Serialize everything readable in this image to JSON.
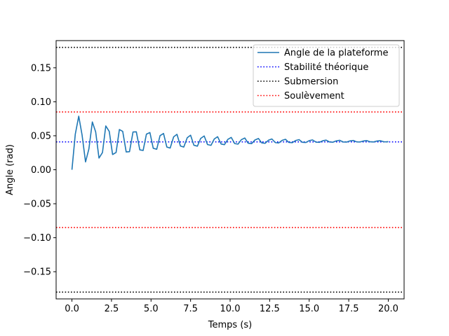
{
  "chart_data": {
    "type": "line",
    "title": "",
    "xlabel": "Temps (s)",
    "ylabel": "Angle (rad)",
    "xlim": [
      -1.0,
      21.0
    ],
    "ylim": [
      -0.19,
      0.19
    ],
    "xticks": [
      0.0,
      2.5,
      5.0,
      7.5,
      10.0,
      12.5,
      15.0,
      17.5,
      20.0
    ],
    "xtick_labels": [
      "0.0",
      "2.5",
      "5.0",
      "7.5",
      "10.0",
      "12.5",
      "15.0",
      "17.5",
      "20.0"
    ],
    "yticks": [
      -0.15,
      -0.1,
      -0.05,
      0.0,
      0.05,
      0.1,
      0.15
    ],
    "ytick_labels": [
      "−0.15",
      "−0.10",
      "−0.05",
      "0.00",
      "0.05",
      "0.10",
      "0.15"
    ],
    "grid": false,
    "legend_position": "top-right",
    "series": [
      {
        "name": "Angle de la plateforme",
        "style": "solid",
        "color": "#1f77b4",
        "x": [
          0.0,
          0.21,
          0.43,
          0.64,
          0.86,
          1.07,
          1.29,
          1.5,
          1.71,
          1.93,
          2.14,
          2.36,
          2.57,
          2.79,
          3.0,
          3.21,
          3.43,
          3.64,
          3.86,
          4.07,
          4.29,
          4.5,
          4.71,
          4.93,
          5.14,
          5.36,
          5.57,
          5.79,
          6.0,
          6.21,
          6.43,
          6.64,
          6.86,
          7.07,
          7.29,
          7.5,
          7.71,
          7.93,
          8.14,
          8.36,
          8.57,
          8.79,
          9.0,
          9.21,
          9.43,
          9.64,
          9.86,
          10.07,
          10.29,
          10.5,
          10.71,
          10.93,
          11.14,
          11.36,
          11.57,
          11.79,
          12.0,
          12.21,
          12.43,
          12.64,
          12.86,
          13.07,
          13.29,
          13.5,
          13.71,
          13.93,
          14.14,
          14.36,
          14.57,
          14.79,
          15.0,
          15.21,
          15.43,
          15.64,
          15.86,
          16.07,
          16.29,
          16.5,
          16.71,
          16.93,
          17.14,
          17.36,
          17.57,
          17.79,
          18.0,
          18.21,
          18.43,
          18.64,
          18.86,
          19.07,
          19.29,
          19.5,
          19.71,
          19.93,
          20.0
        ],
        "y": [
          0.0,
          0.0521,
          0.0788,
          0.0512,
          0.0115,
          0.0304,
          0.0703,
          0.0558,
          0.0172,
          0.0253,
          0.0644,
          0.0563,
          0.0224,
          0.0254,
          0.0592,
          0.0564,
          0.0262,
          0.0266,
          0.0555,
          0.0558,
          0.0293,
          0.0284,
          0.0524,
          0.0547,
          0.0316,
          0.0302,
          0.0501,
          0.0534,
          0.0334,
          0.0319,
          0.0484,
          0.0521,
          0.0349,
          0.0334,
          0.0471,
          0.0508,
          0.0361,
          0.0347,
          0.0461,
          0.0497,
          0.0371,
          0.0359,
          0.0453,
          0.0486,
          0.0379,
          0.0369,
          0.0447,
          0.0476,
          0.0385,
          0.0377,
          0.0442,
          0.0467,
          0.0391,
          0.0384,
          0.0438,
          0.046,
          0.0395,
          0.0389,
          0.0435,
          0.0453,
          0.0399,
          0.0394,
          0.0432,
          0.0448,
          0.0402,
          0.0398,
          0.043,
          0.0443,
          0.0404,
          0.0401,
          0.0428,
          0.0439,
          0.0406,
          0.0403,
          0.0427,
          0.0436,
          0.0408,
          0.0405,
          0.0425,
          0.0433,
          0.0409,
          0.0407,
          0.0424,
          0.0431,
          0.041,
          0.0408,
          0.0423,
          0.0429,
          0.0411,
          0.0409,
          0.0423,
          0.0427,
          0.0412,
          0.041,
          0.0415
        ]
      },
      {
        "name": "Stabilité théorique",
        "style": "dotted",
        "color": "#0000ff",
        "y_constant": 0.041
      },
      {
        "name": "Submersion",
        "style": "dotted",
        "color": "#000000",
        "y_constant": [
          0.18,
          -0.18
        ]
      },
      {
        "name": "Soulèvement",
        "style": "dotted",
        "color": "#ff0000",
        "y_constant": [
          0.085,
          -0.085
        ]
      }
    ]
  }
}
